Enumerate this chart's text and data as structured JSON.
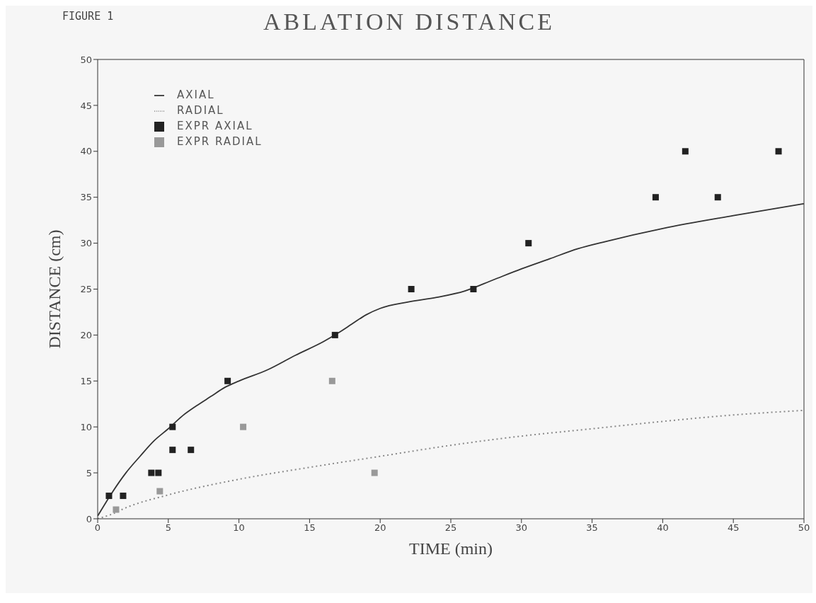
{
  "chart_data": {
    "type": "line",
    "title": "ABLATION DISTANCE",
    "xlabel": "TIME (min)",
    "ylabel": "DISTANCE (cm)",
    "annotations": [
      "FIGURE 1"
    ],
    "xlim": [
      0,
      50
    ],
    "ylim": [
      0,
      50
    ],
    "xticks": [
      0,
      5,
      10,
      15,
      20,
      25,
      30,
      35,
      40,
      45,
      50
    ],
    "yticks": [
      0,
      5,
      10,
      15,
      20,
      25,
      30,
      35,
      40,
      45,
      50
    ],
    "grid": false,
    "legend": "top left",
    "series": [
      {
        "name": "AXIAL",
        "color": "#333333",
        "line_style": "solid",
        "marker": "none",
        "x": [
          0,
          1,
          2,
          3,
          4,
          5,
          6,
          7,
          8,
          9,
          10,
          12,
          14,
          16,
          17,
          18,
          19,
          20,
          22,
          24,
          26,
          28,
          30,
          32,
          34,
          36,
          40,
          45,
          50
        ],
        "values": [
          0.3,
          2.8,
          5,
          6.8,
          8.5,
          9.8,
          11.2,
          12.3,
          13.3,
          14.3,
          15,
          16.2,
          17.8,
          19.3,
          20.2,
          21.2,
          22.2,
          22.9,
          23.6,
          24.1,
          24.8,
          26,
          27.2,
          28.3,
          29.4,
          30.2,
          31.6,
          33,
          34.3
        ]
      },
      {
        "name": "RADIAL",
        "color": "#888888",
        "line_style": "dotted",
        "marker": "none",
        "x": [
          0,
          1,
          2,
          5,
          10,
          15,
          20,
          25,
          30,
          35,
          40,
          45,
          50
        ],
        "values": [
          0,
          0.5,
          1.2,
          2.6,
          4.3,
          5.6,
          6.8,
          8,
          9,
          9.8,
          10.6,
          11.3,
          11.8
        ]
      },
      {
        "name": "EXPR AXIAL",
        "type": "scatter",
        "color": "#222222",
        "marker": "square",
        "x": [
          0.8,
          1.8,
          3.8,
          4.3,
          5.3,
          5.3,
          6.6,
          9.2,
          16.8,
          22.2,
          26.6,
          30.5,
          39.5,
          41.6,
          43.9,
          48.2
        ],
        "values": [
          2.5,
          2.5,
          5,
          5,
          10,
          7.5,
          7.5,
          15,
          20,
          25,
          25,
          30,
          35,
          40,
          35,
          40
        ]
      },
      {
        "name": "EXPR RADIAL",
        "type": "scatter",
        "color": "#999999",
        "marker": "square",
        "x": [
          1.3,
          4.4,
          10.3,
          16.6,
          19.6
        ],
        "values": [
          1,
          3,
          10,
          15,
          5
        ]
      }
    ]
  }
}
